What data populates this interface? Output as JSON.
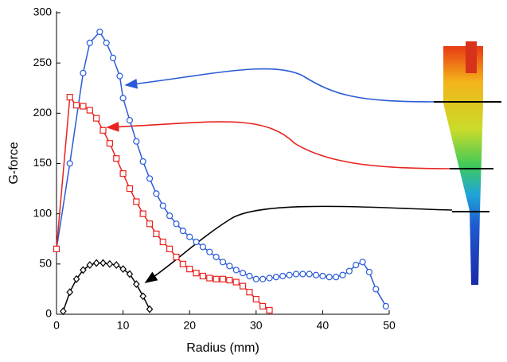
{
  "chart_data": {
    "type": "line",
    "x_label": "Radius (mm)",
    "y_label": "G-force",
    "xlim": [
      0,
      50
    ],
    "xticks": [
      0,
      10,
      20,
      30,
      40,
      50
    ],
    "ylim": [
      0,
      300
    ],
    "yticks": [
      0,
      50,
      100,
      150,
      200,
      250,
      300
    ],
    "series": [
      {
        "color": "#2a5bd7",
        "marker": "circle",
        "x": [
          0,
          2,
          4,
          5,
          6.5,
          7.5,
          8.5,
          9.5,
          10,
          11,
          12,
          13,
          14,
          15,
          16,
          17,
          18,
          19,
          20,
          21,
          22,
          23,
          24,
          25,
          26,
          27,
          28,
          29,
          30,
          31,
          32,
          33,
          34,
          35,
          36,
          37,
          38,
          39,
          40,
          41,
          42,
          43,
          44,
          45,
          46,
          47,
          48,
          49.5
        ],
        "values": [
          65,
          150,
          240,
          270,
          281,
          270,
          255,
          237,
          215,
          193,
          172,
          152,
          135,
          120,
          108,
          98,
          90,
          83,
          77,
          72,
          67,
          62,
          57,
          52,
          48,
          44,
          41,
          38,
          35,
          35,
          36,
          37,
          38,
          39,
          40,
          40,
          40,
          39,
          38,
          37,
          37,
          39,
          43,
          49,
          52,
          42,
          25,
          8
        ]
      },
      {
        "color": "#e8231f",
        "marker": "square",
        "x": [
          0,
          2,
          3,
          4,
          5,
          6,
          7,
          8,
          9,
          10,
          11,
          12,
          13,
          14,
          15,
          16,
          17,
          18,
          19,
          20,
          21,
          22,
          23,
          24,
          25,
          26,
          27,
          28,
          29,
          30,
          31,
          32
        ],
        "values": [
          65,
          216,
          208,
          207,
          203,
          195,
          183,
          170,
          155,
          140,
          125,
          112,
          100,
          90,
          80,
          72,
          65,
          57,
          50,
          45,
          41,
          38,
          36,
          35,
          35,
          34,
          32,
          28,
          22,
          15,
          8,
          4
        ]
      },
      {
        "color": "#000000",
        "marker": "diamond",
        "x": [
          1,
          2,
          3,
          4,
          5,
          6,
          7,
          8,
          9,
          10,
          11,
          12,
          13,
          14
        ],
        "values": [
          3,
          22,
          35,
          44,
          49,
          51,
          51,
          50,
          49,
          45,
          40,
          30,
          18,
          5
        ]
      }
    ]
  }
}
